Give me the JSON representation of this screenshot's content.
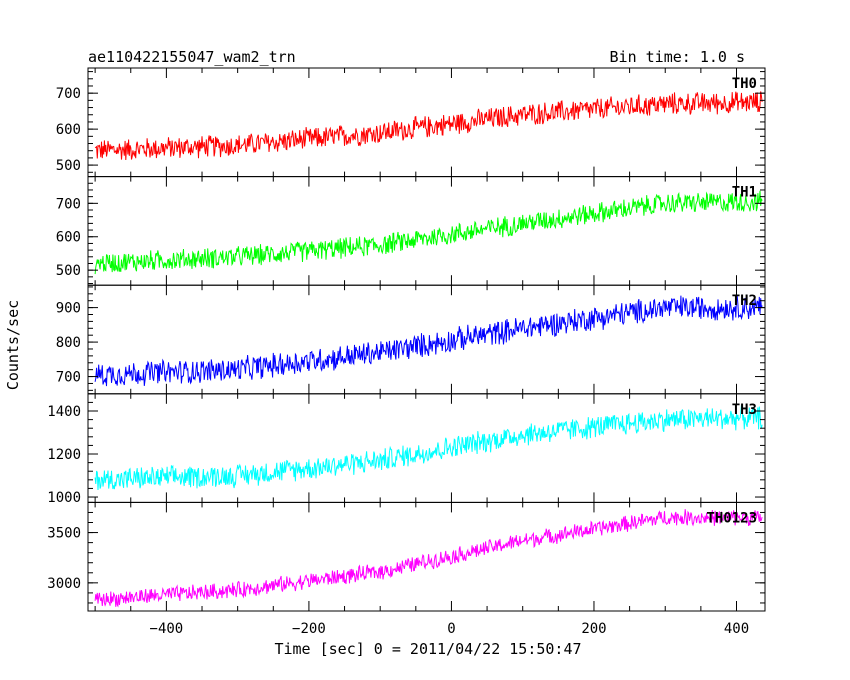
{
  "header": {
    "title": "ae110422155047_wam2_trn",
    "bin_time": "Bin time: 1.0 s"
  },
  "axes": {
    "xlabel": "Time [sec] 0 = 2011/04/22 15:50:47",
    "ylabel": "Counts/sec"
  },
  "chart_data": {
    "type": "line",
    "x_range": [
      -510,
      440
    ],
    "x_ticks": [
      -400,
      -200,
      0,
      200,
      400
    ],
    "bin_time_s": 1.0,
    "panels": [
      {
        "name": "TH0",
        "color": "#ff0000",
        "ylim": [
          468,
          770
        ],
        "y_ticks": [
          500,
          600,
          700
        ],
        "trend": [
          [
            -500,
            540
          ],
          [
            -300,
            555
          ],
          [
            -100,
            590
          ],
          [
            100,
            640
          ],
          [
            300,
            670
          ],
          [
            435,
            675
          ]
        ],
        "noise": 35
      },
      {
        "name": "TH1",
        "color": "#00ff00",
        "ylim": [
          455,
          780
        ],
        "y_ticks": [
          500,
          600,
          700
        ],
        "trend": [
          [
            -500,
            520
          ],
          [
            -300,
            540
          ],
          [
            -100,
            575
          ],
          [
            100,
            640
          ],
          [
            300,
            700
          ],
          [
            435,
            705
          ]
        ],
        "noise": 35
      },
      {
        "name": "TH2",
        "color": "#0000ff",
        "ylim": [
          650,
          965
        ],
        "y_ticks": [
          700,
          800,
          900
        ],
        "trend": [
          [
            -500,
            705
          ],
          [
            -300,
            720
          ],
          [
            -100,
            770
          ],
          [
            100,
            840
          ],
          [
            300,
            900
          ],
          [
            435,
            900
          ]
        ],
        "noise": 40
      },
      {
        "name": "TH3",
        "color": "#00ffff",
        "ylim": [
          975,
          1480
        ],
        "y_ticks": [
          1000,
          1200,
          1400
        ],
        "trend": [
          [
            -500,
            1080
          ],
          [
            -300,
            1100
          ],
          [
            -100,
            1170
          ],
          [
            100,
            1290
          ],
          [
            300,
            1360
          ],
          [
            435,
            1370
          ]
        ],
        "noise": 60
      },
      {
        "name": "TH0123",
        "color": "#ff00ff",
        "ylim": [
          2720,
          3800
        ],
        "y_ticks": [
          3000,
          3500
        ],
        "trend": [
          [
            -500,
            2830
          ],
          [
            -300,
            2930
          ],
          [
            -100,
            3110
          ],
          [
            100,
            3420
          ],
          [
            300,
            3650
          ],
          [
            435,
            3650
          ]
        ],
        "noise": 90
      }
    ]
  }
}
